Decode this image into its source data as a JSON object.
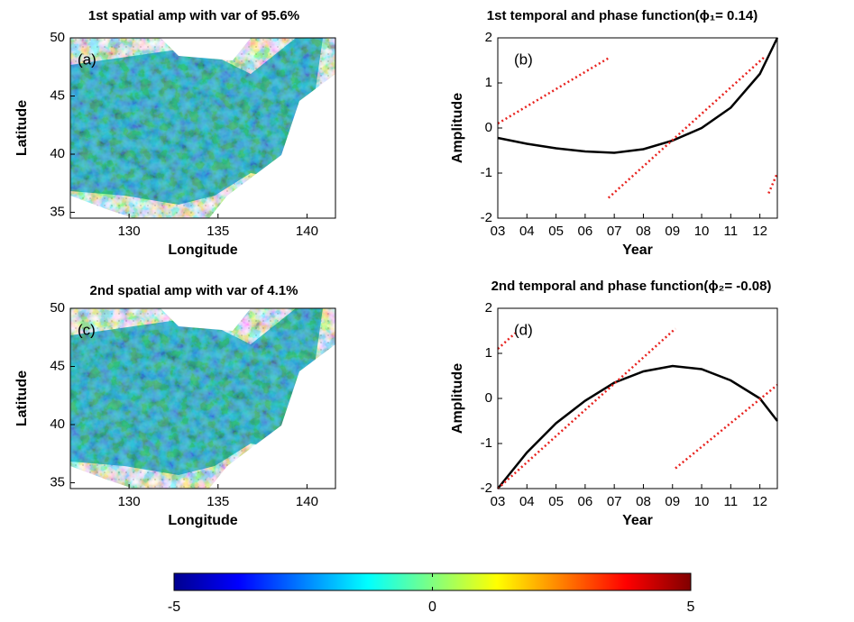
{
  "chart_data": [
    {
      "type": "map",
      "title": "1st spatial amp with var of 95.6%",
      "annotation": "(a)",
      "xlabel": "Longitude",
      "ylabel": "Latitude",
      "xlim": [
        126.7,
        141.6
      ],
      "ylim": [
        34.5,
        50
      ],
      "xticks": [
        130,
        135,
        140
      ],
      "yticks": [
        35,
        40,
        45,
        50
      ]
    },
    {
      "type": "line",
      "title": "1st temporal and phase function(ϕ₁= 0.14)",
      "annotation": "(b)",
      "xlabel": "Year",
      "ylabel": "Amplitude",
      "xlim": [
        2003,
        2012.6
      ],
      "ylim": [
        -2,
        2
      ],
      "xticks": [
        {
          "value": 2003,
          "label": "03"
        },
        {
          "value": 2004,
          "label": "04"
        },
        {
          "value": 2005,
          "label": "05"
        },
        {
          "value": 2006,
          "label": "06"
        },
        {
          "value": 2007,
          "label": "07"
        },
        {
          "value": 2008,
          "label": "08"
        },
        {
          "value": 2009,
          "label": "09"
        },
        {
          "value": 2010,
          "label": "10"
        },
        {
          "value": 2011,
          "label": "11"
        },
        {
          "value": 2012,
          "label": "12"
        }
      ],
      "yticks": [
        -2,
        -1,
        0,
        1,
        2
      ],
      "series": [
        {
          "color": "#000000",
          "style": "solid",
          "x": [
            2003,
            2004,
            2005,
            2006,
            2007,
            2008,
            2009,
            2010,
            2011,
            2012,
            2012.6
          ],
          "values": [
            -0.22,
            -0.35,
            -0.45,
            -0.52,
            -0.55,
            -0.47,
            -0.28,
            0.0,
            0.45,
            1.2,
            2.0
          ]
        },
        {
          "color": "#e8231f",
          "style": "dotted",
          "x": [
            2003,
            2006.8,
            null,
            2006.8,
            2012.2,
            null,
            2012.3,
            2012.6
          ],
          "values": [
            0.1,
            1.55,
            null,
            -1.55,
            1.6,
            null,
            -1.45,
            -1.0
          ]
        }
      ]
    },
    {
      "type": "map",
      "title": "2nd spatial amp with var of  4.1%",
      "annotation": "(c)",
      "xlabel": "Longitude",
      "ylabel": "Latitude",
      "xlim": [
        126.7,
        141.6
      ],
      "ylim": [
        34.5,
        50
      ],
      "xticks": [
        130,
        135,
        140
      ],
      "yticks": [
        35,
        40,
        45,
        50
      ]
    },
    {
      "type": "line",
      "title": "2nd temporal and phase function(ϕ₂= -0.08)",
      "annotation": "(d)",
      "xlabel": "Year",
      "ylabel": "Amplitude",
      "xlim": [
        2003,
        2012.6
      ],
      "ylim": [
        -2,
        2
      ],
      "xticks": [
        {
          "value": 2003,
          "label": "03"
        },
        {
          "value": 2004,
          "label": "04"
        },
        {
          "value": 2005,
          "label": "05"
        },
        {
          "value": 2006,
          "label": "06"
        },
        {
          "value": 2007,
          "label": "07"
        },
        {
          "value": 2008,
          "label": "08"
        },
        {
          "value": 2009,
          "label": "09"
        },
        {
          "value": 2010,
          "label": "10"
        },
        {
          "value": 2011,
          "label": "11"
        },
        {
          "value": 2012,
          "label": "12"
        }
      ],
      "yticks": [
        -2,
        -1,
        0,
        1,
        2
      ],
      "series": [
        {
          "color": "#000000",
          "style": "solid",
          "x": [
            2003,
            2004,
            2005,
            2006,
            2007,
            2008,
            2009,
            2010,
            2011,
            2012,
            2012.6
          ],
          "values": [
            -2.0,
            -1.2,
            -0.55,
            -0.05,
            0.35,
            0.6,
            0.72,
            0.65,
            0.4,
            0.0,
            -0.5
          ]
        },
        {
          "color": "#e8231f",
          "style": "dotted",
          "x": [
            2003,
            2003.6,
            null,
            2003,
            2009.1,
            null,
            2009.1,
            2012.6
          ],
          "values": [
            1.1,
            1.45,
            null,
            -2.0,
            1.55,
            null,
            -1.55,
            0.3
          ]
        }
      ]
    },
    {
      "type": "colorbar",
      "lim": [
        -5,
        5
      ],
      "ticks": [
        -5,
        0,
        5
      ],
      "colors": [
        "#00008f",
        "#0000ff",
        "#0080ff",
        "#00ffff",
        "#80ff80",
        "#ffff00",
        "#ff8000",
        "#ff0000",
        "#800000"
      ]
    }
  ]
}
